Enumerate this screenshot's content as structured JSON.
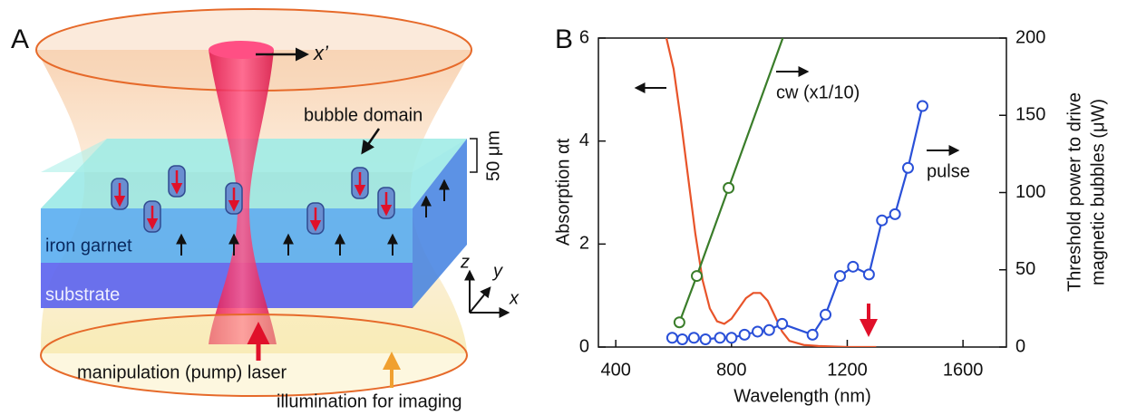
{
  "panel_a": {
    "label": "A",
    "texts": {
      "x_axis": "x’",
      "bubble_domain": "bubble domain",
      "thickness": "50 μm",
      "iron_garnet": "iron garnet",
      "substrate": "substrate",
      "z": "z",
      "y": "y",
      "x": "x",
      "pump": "manipulation (pump) laser",
      "illumination": "illumination for imaging"
    }
  },
  "chart_data": {
    "type": "line",
    "panel_label": "B",
    "xlabel": "Wavelength (nm)",
    "ylabel": "Absorption αt",
    "y2label": [
      "Threshold power to drive",
      "magnetic bubbles (μW)"
    ],
    "xlim": [
      340,
      1750
    ],
    "xticks": [
      400,
      800,
      1200,
      1600
    ],
    "ylim": [
      0,
      6
    ],
    "yticks": [
      0,
      2,
      4,
      6
    ],
    "y2lim": [
      0,
      200
    ],
    "y2ticks": [
      0,
      50,
      100,
      150,
      200
    ],
    "series": [
      {
        "color": "#e8542a",
        "axis": "y",
        "markers": false,
        "x": [
          575,
          600,
          625,
          650,
          675,
          700,
          725,
          750,
          775,
          800,
          825,
          850,
          875,
          900,
          925,
          950,
          975,
          1000,
          1050,
          1100,
          1200,
          1300
        ],
        "values": [
          6,
          5.4,
          4.4,
          3.3,
          2.2,
          1.3,
          0.75,
          0.5,
          0.45,
          0.55,
          0.75,
          0.95,
          1.05,
          1.05,
          0.9,
          0.6,
          0.3,
          0.12,
          0.04,
          0.02,
          0,
          0
        ]
      },
      {
        "name": "cw (x1/10)",
        "color": "#3a7d2a",
        "axis": "y2",
        "markers": true,
        "x": [
          620,
          680,
          790
        ],
        "values": [
          16,
          46,
          103
        ]
      },
      {
        "name": "pulse",
        "color": "#2a50d8",
        "axis": "y2",
        "markers": true,
        "x": [
          595,
          630,
          670,
          710,
          760,
          800,
          845,
          890,
          930,
          975,
          1080,
          1125,
          1175,
          1220,
          1275,
          1320,
          1365,
          1410,
          1460
        ],
        "values": [
          6,
          5,
          6,
          5,
          6,
          6,
          8,
          10,
          11,
          15,
          8,
          21,
          46,
          52,
          47,
          82,
          86,
          116,
          156
        ]
      }
    ]
  }
}
